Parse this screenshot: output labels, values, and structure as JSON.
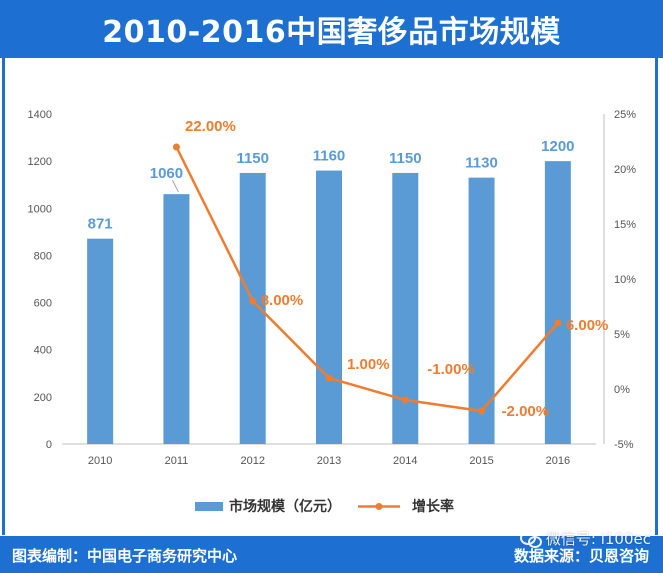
{
  "title": "2010-2016中国奢侈品市场规模",
  "colors": {
    "bar": "#5b9bd5",
    "line": "#ed7d31",
    "bar_label": "#5b9bd5",
    "line_label": "#ed7d31",
    "brand": "#1d6fd1"
  },
  "chart_data": {
    "type": "bar+line",
    "categories": [
      "2010",
      "2011",
      "2012",
      "2013",
      "2014",
      "2015",
      "2016"
    ],
    "series": [
      {
        "name": "市场规模（亿元）",
        "type": "bar",
        "axis": "left",
        "values": [
          871,
          1060,
          1150,
          1160,
          1150,
          1130,
          1200
        ],
        "labels": [
          "871",
          "1060",
          "1150",
          "1160",
          "1150",
          "1130",
          "1200"
        ]
      },
      {
        "name": "增长率",
        "type": "line",
        "axis": "right",
        "values": [
          null,
          22.0,
          8.0,
          1.0,
          -1.0,
          -2.0,
          6.0
        ],
        "labels": [
          "",
          "22.00%",
          "8.00%",
          "1.00%",
          "-1.00%",
          "-2.00%",
          "6.00%"
        ]
      }
    ],
    "left_axis": {
      "min": 0,
      "max": 1400,
      "ticks": [
        "0",
        "200",
        "400",
        "600",
        "800",
        "1000",
        "1200",
        "1400"
      ]
    },
    "right_axis": {
      "min": -5,
      "max": 25,
      "ticks": [
        "-5%",
        "0%",
        "5%",
        "10%",
        "15%",
        "20%",
        "25%"
      ]
    },
    "legend": {
      "position": "bottom",
      "bar_label": "市场规模（亿元）",
      "line_label": "增长率"
    }
  },
  "footer": {
    "left": "图表编制：中国电子商务研究中心",
    "right": "数据来源：贝恩咨询"
  },
  "watermark": {
    "text": "微信号: i100ec",
    "icon": "wechat-icon"
  }
}
